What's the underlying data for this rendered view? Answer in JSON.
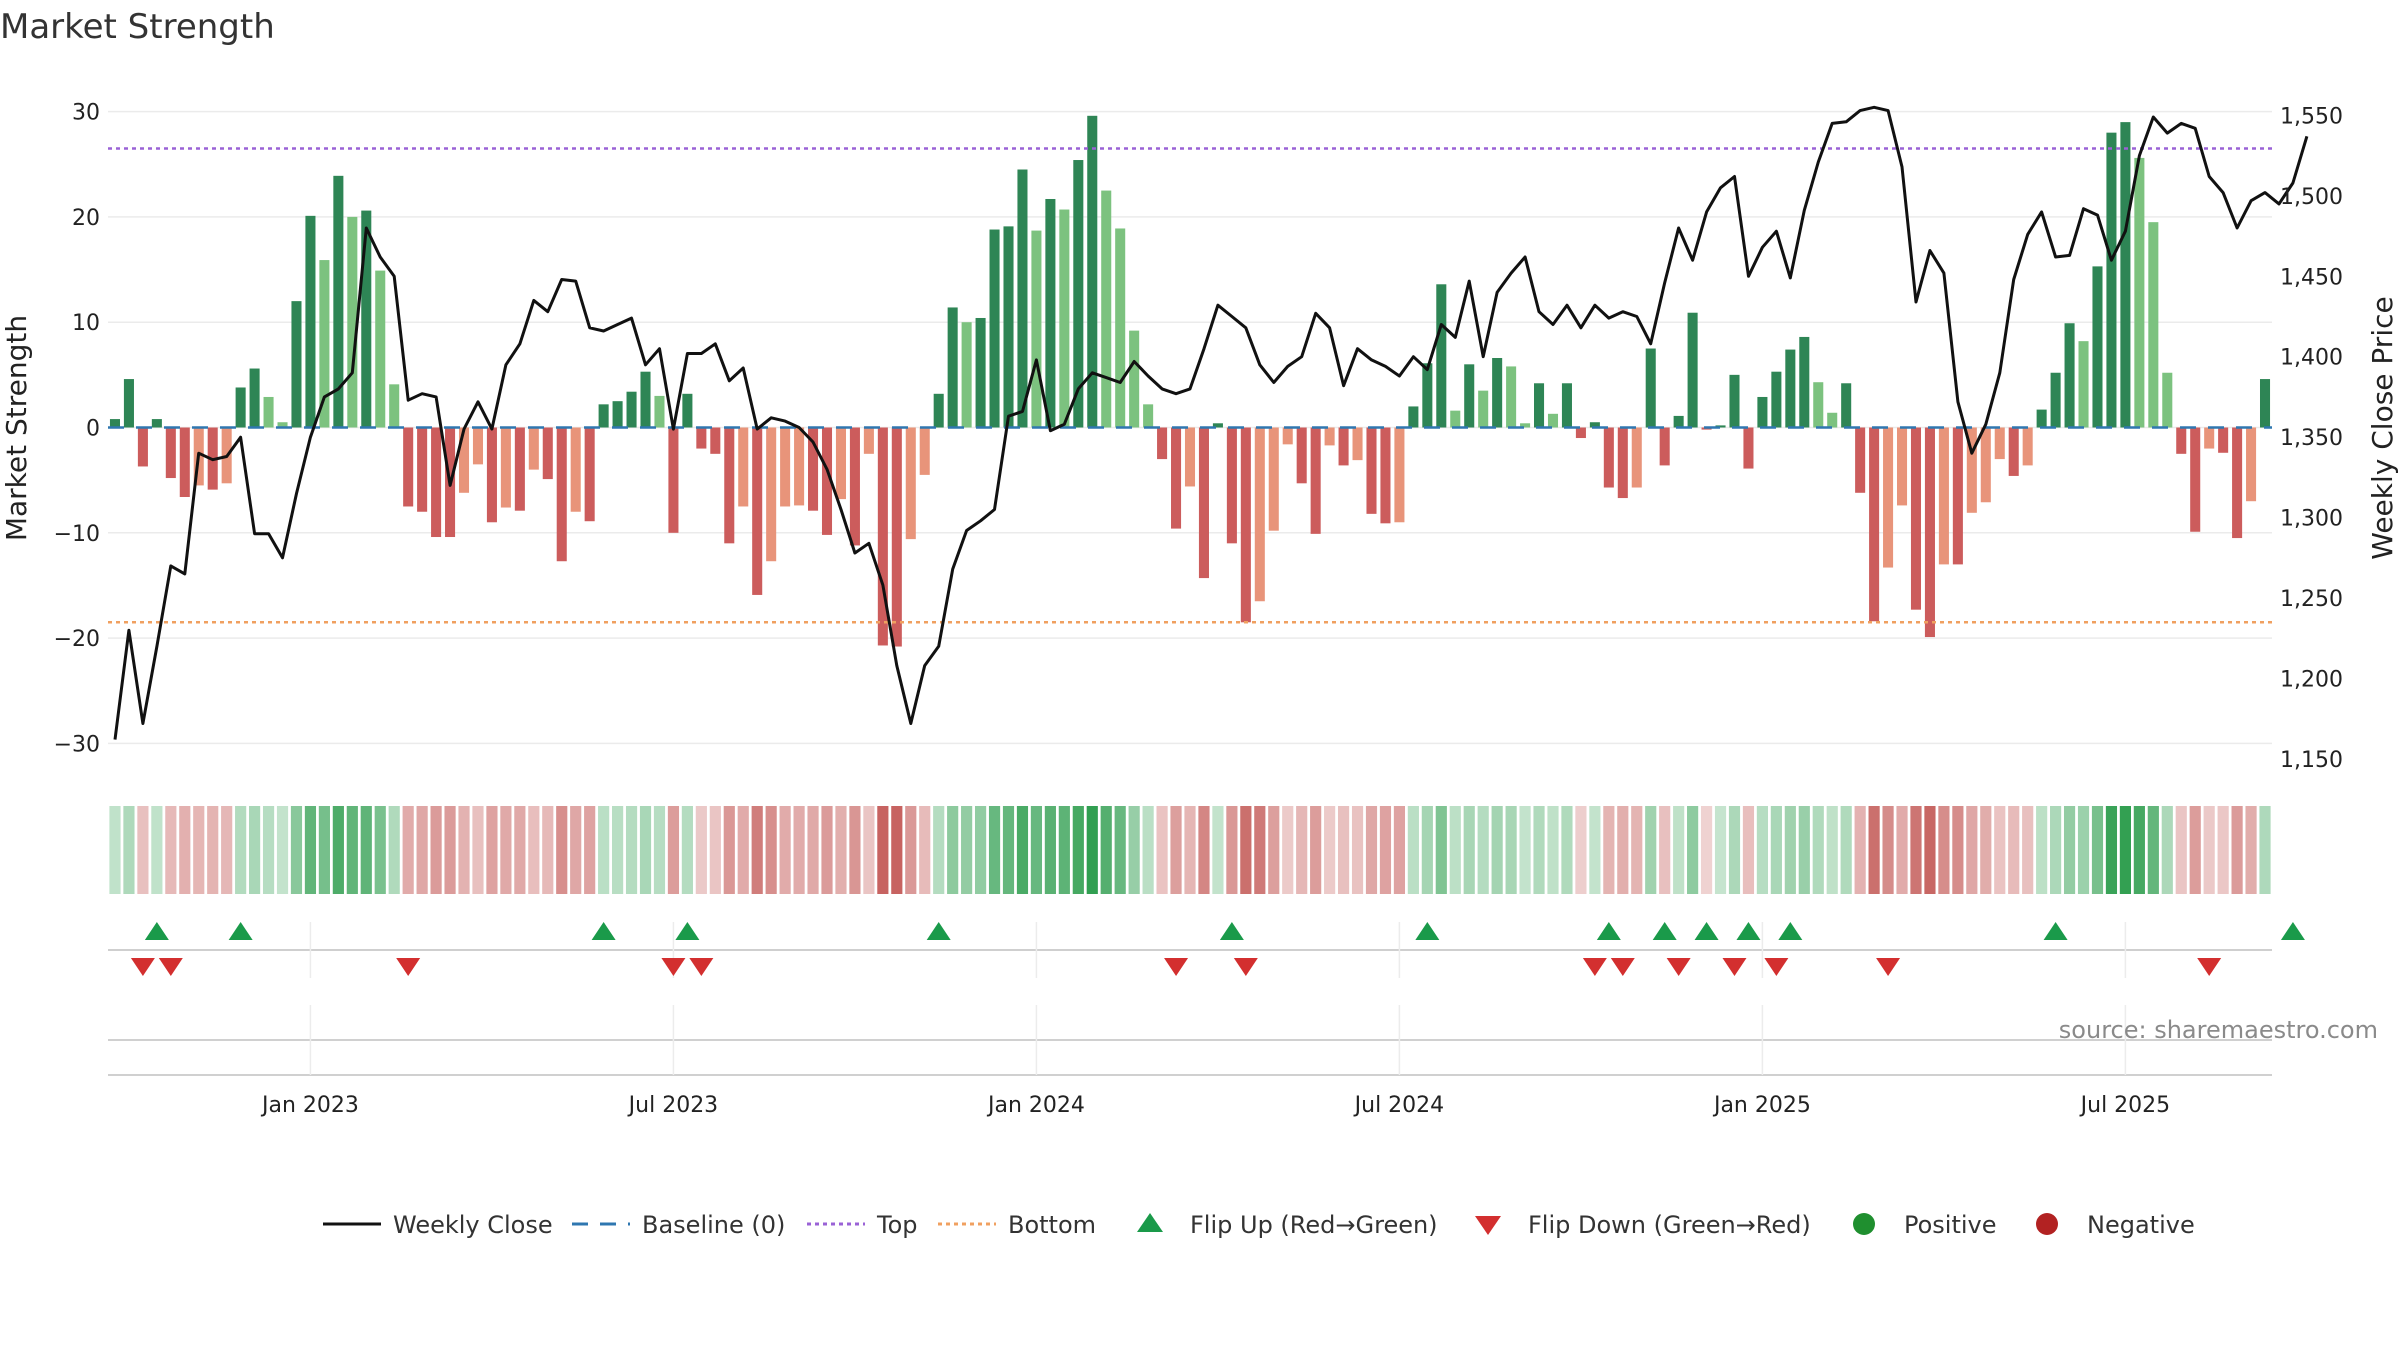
{
  "chart_data": {
    "type": "bar",
    "title": "Market Strength",
    "ylabel": "Market Strength",
    "y2label": "Weekly Close Price",
    "ylim": [
      -33,
      33
    ],
    "y2lim": [
      1140,
      1572
    ],
    "y_ticks": [
      30,
      20,
      10,
      0,
      -10,
      -20,
      -30
    ],
    "y_tick_labels": [
      "30",
      "20",
      "10",
      "0",
      "−10",
      "−20",
      "−30"
    ],
    "y2_ticks": [
      1550,
      1500,
      1450,
      1400,
      1350,
      1300,
      1250,
      1200,
      1150
    ],
    "y2_tick_labels": [
      "1,550",
      "1,500",
      "1,450",
      "1,400",
      "1,350",
      "1,300",
      "1,250",
      "1,200",
      "1,150"
    ],
    "x_tick_labels": [
      "Jan 2023",
      "Jul 2023",
      "Jan 2024",
      "Jul 2024",
      "Jan 2025",
      "Jul 2025"
    ],
    "x_tick_weeks": [
      14.5,
      40.5,
      66.5,
      92.5,
      118.5,
      144.5
    ],
    "top_line": 26.5,
    "bottom_line": -18.5,
    "strength": [
      0.8,
      4.6,
      -3.7,
      0.8,
      -4.8,
      -6.6,
      -5.5,
      -5.9,
      -5.3,
      3.8,
      5.6,
      2.9,
      0.5,
      12.0,
      20.1,
      15.9,
      23.9,
      20.0,
      20.6,
      14.9,
      4.1,
      -7.5,
      -8.0,
      -10.4,
      -10.4,
      -6.2,
      -3.5,
      -9.0,
      -7.6,
      -7.9,
      -4.0,
      -4.9,
      -12.7,
      -8.0,
      -8.9,
      2.2,
      2.5,
      3.4,
      5.3,
      3.0,
      -10.0,
      3.2,
      -2.0,
      -2.5,
      -11.0,
      -7.5,
      -15.9,
      -12.7,
      -7.5,
      -7.4,
      -7.9,
      -10.2,
      -6.8,
      -11.2,
      -2.5,
      -20.7,
      -20.8,
      -10.6,
      -4.5,
      3.2,
      11.4,
      10.0,
      10.4,
      18.8,
      19.1,
      24.5,
      18.7,
      21.7,
      20.7,
      25.4,
      29.6,
      22.5,
      18.9,
      9.2,
      2.2,
      -3.0,
      -9.6,
      -5.6,
      -14.3,
      0.4,
      -11.0,
      -18.5,
      -16.5,
      -9.8,
      -1.6,
      -5.3,
      -10.1,
      -1.7,
      -3.6,
      -3.1,
      -8.2,
      -9.1,
      -9.0,
      2.0,
      6.1,
      13.6,
      1.6,
      6.0,
      3.5,
      6.6,
      5.8,
      0.4,
      4.2,
      1.3,
      4.2,
      -1.0,
      0.5,
      -5.7,
      -6.7,
      -5.7,
      7.5,
      -3.6,
      1.1,
      10.9,
      -0.2,
      0.2,
      5.0,
      -3.9,
      2.9,
      5.3,
      7.4,
      8.6,
      4.3,
      1.4,
      4.2,
      -6.2,
      -18.4,
      -13.3,
      -7.4,
      -17.3,
      -19.9,
      -13.0,
      -13.0,
      -8.1,
      -7.1,
      -3.0,
      -4.6,
      -3.6,
      1.7,
      5.2,
      9.9,
      8.2,
      15.3,
      28.0,
      29.0,
      25.6,
      19.5,
      5.2,
      -2.5,
      -9.9,
      -2.0,
      -2.4,
      -10.5,
      -7.0,
      4.6
    ],
    "close": [
      1162,
      1230,
      1172,
      1220,
      1270,
      1265,
      1340,
      1336,
      1338,
      1350,
      1290,
      1290,
      1275,
      1315,
      1350,
      1375,
      1380,
      1390,
      1480,
      1462,
      1450,
      1373,
      1377,
      1375,
      1320,
      1355,
      1372,
      1355,
      1395,
      1408,
      1435,
      1428,
      1448,
      1447,
      1418,
      1416,
      1420,
      1424,
      1395,
      1405,
      1355,
      1402,
      1402,
      1408,
      1385,
      1393,
      1355,
      1362,
      1360,
      1356,
      1347,
      1330,
      1305,
      1278,
      1284,
      1258,
      1208,
      1172,
      1208,
      1220,
      1268,
      1292,
      1298,
      1305,
      1363,
      1366,
      1398,
      1354,
      1358,
      1380,
      1390,
      1387,
      1384,
      1397,
      1388,
      1380,
      1377,
      1380,
      1405,
      1432,
      1425,
      1418,
      1395,
      1384,
      1394,
      1400,
      1427,
      1418,
      1382,
      1405,
      1398,
      1394,
      1388,
      1400,
      1392,
      1420,
      1412,
      1447,
      1400,
      1440,
      1452,
      1462,
      1428,
      1420,
      1432,
      1418,
      1432,
      1424,
      1428,
      1425,
      1408,
      1446,
      1480,
      1460,
      1490,
      1505,
      1512,
      1450,
      1468,
      1478,
      1449,
      1491,
      1521,
      1545,
      1546,
      1553,
      1555,
      1553,
      1518,
      1434,
      1466,
      1452,
      1372,
      1340,
      1358,
      1390,
      1448,
      1476,
      1490,
      1462,
      1463,
      1492,
      1488,
      1460,
      1478,
      1525,
      1549,
      1539,
      1545,
      1542,
      1512,
      1502,
      1480,
      1497,
      1502,
      1495,
      1508,
      1537
    ],
    "flip_up_weeks": [
      3,
      9,
      35,
      41,
      59,
      80,
      94,
      107,
      111,
      114,
      117,
      120,
      139,
      156
    ],
    "flip_down_weeks": [
      2,
      4,
      21,
      40,
      42,
      76,
      81,
      106,
      108,
      112,
      116,
      119,
      127,
      150
    ],
    "legend": [
      "Weekly Close",
      "Baseline (0)",
      "Top",
      "Bottom",
      "Flip Up (Red→Green)",
      "Flip Down (Green→Red)",
      "Positive",
      "Negative"
    ],
    "source": "source: sharemaestro.com",
    "colors": {
      "pos_strong": "#2e8555",
      "pos_light": "#7cc27f",
      "neg_strong": "#cc5c5c",
      "neg_light": "#e8947a",
      "close_line": "#111111",
      "baseline": "#2f77b0",
      "top": "#9a62d6",
      "bottom": "#f0a060",
      "flip_up": "#1a9a4a",
      "flip_down": "#d32f2f",
      "positive_dot": "#1f8f2f",
      "negative_dot": "#b22222"
    }
  }
}
